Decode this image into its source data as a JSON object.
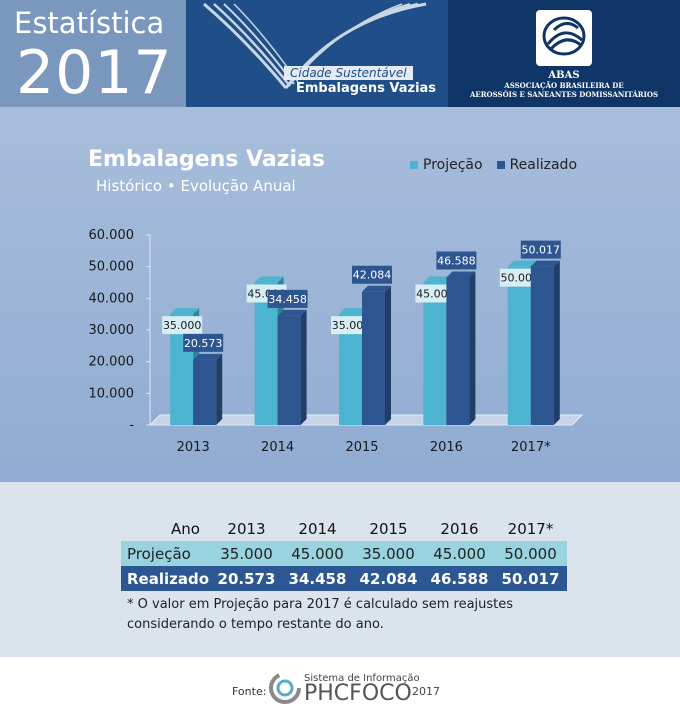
{
  "header": {
    "title_line1": "Estatística",
    "title_line2": "2017",
    "tagline1": "Cidade Sustentável",
    "tagline2": "Embalagens Vazias",
    "org_name": "ABAS",
    "org_full_line1": "ASSOCIAÇÃO BRASILEIRA DE",
    "org_full_line2": "AEROSSÓIS E SANEANTES DOMISSANITÁRIOS"
  },
  "chart_data": {
    "type": "bar",
    "title": "Embalagens Vazias",
    "subtitle": "Histórico • Evolução Anual",
    "categories": [
      "2013",
      "2014",
      "2015",
      "2016",
      "2017*"
    ],
    "series": [
      {
        "name": "Projeção",
        "color": "#4cb3d0",
        "values": [
          35000,
          45000,
          35000,
          45000,
          50000
        ],
        "labels": [
          "35.000",
          "45.000",
          "35.000",
          "45.000",
          "50.000"
        ]
      },
      {
        "name": "Realizado",
        "color": "#2d5690",
        "values": [
          20573,
          34458,
          42084,
          46588,
          50017
        ],
        "labels": [
          "20.573",
          "34.458",
          "42.084",
          "46.588",
          "50.017"
        ]
      }
    ],
    "ylim": [
      0,
      60000
    ],
    "yticks": [
      0,
      10000,
      20000,
      30000,
      40000,
      50000,
      60000
    ],
    "ytick_labels": [
      "-",
      "10.000",
      "20.000",
      "30.000",
      "40.000",
      "50.000",
      "60.000"
    ],
    "legend": "top-right",
    "grid": false
  },
  "table": {
    "header": [
      "Ano",
      "2013",
      "2014",
      "2015",
      "2016",
      "2017*"
    ],
    "rows": [
      {
        "label": "Projeção",
        "values": [
          "35.000",
          "45.000",
          "35.000",
          "45.000",
          "50.000"
        ]
      },
      {
        "label": "Realizado",
        "values": [
          "20.573",
          "34.458",
          "42.084",
          "46.588",
          "50.017"
        ]
      }
    ],
    "note_line1": "* O valor em Projeção para 2017 é calculado sem reajustes",
    "note_line2": "considerando o tempo restante do ano."
  },
  "footer": {
    "source_label": "Fonte:",
    "system_label": "Sistema de Informação",
    "system_name": "PHCFOCO",
    "year": "2017"
  }
}
